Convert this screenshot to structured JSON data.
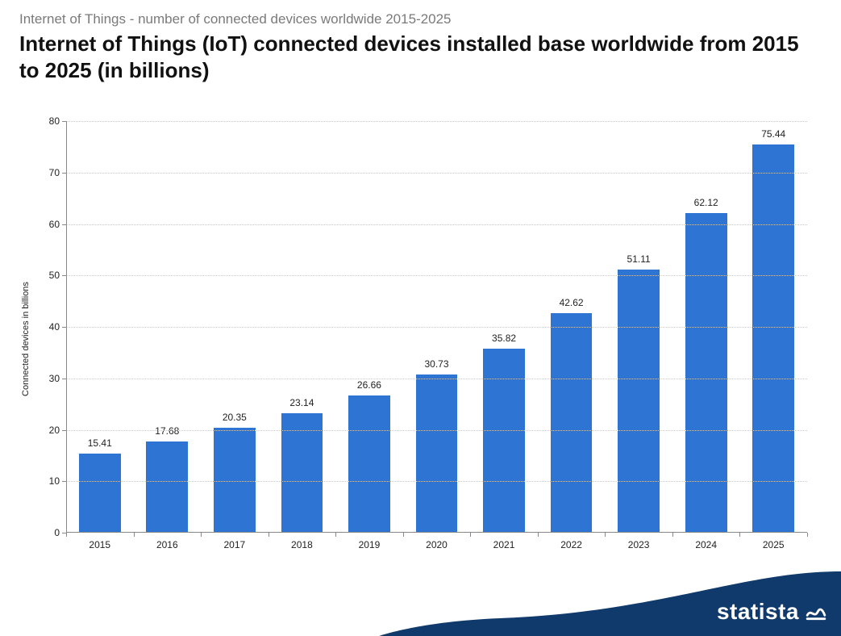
{
  "header": {
    "subtitle": "Internet of Things - number of connected devices worldwide 2015-2025",
    "title": "Internet of Things (IoT) connected devices installed base worldwide from 2015 to 2025 (in billions)"
  },
  "chart": {
    "type": "bar",
    "ylabel": "Connected devices in billions",
    "label_fontsize": 11,
    "tick_fontsize": 12,
    "value_label_fontsize": 12,
    "ylim": [
      0,
      80
    ],
    "ytick_step": 10,
    "yticks": [
      0,
      10,
      20,
      30,
      40,
      50,
      60,
      70,
      80
    ],
    "categories": [
      "2015",
      "2016",
      "2017",
      "2018",
      "2019",
      "2020",
      "2021",
      "2022",
      "2023",
      "2024",
      "2025"
    ],
    "values": [
      15.41,
      17.68,
      20.35,
      23.14,
      26.66,
      30.73,
      35.82,
      42.62,
      51.11,
      62.12,
      75.44
    ],
    "bar_color": "#2e74d2",
    "background_color": "#ffffff",
    "grid_color": "#c9c9c9",
    "grid_style": "dotted",
    "axis_color": "#888888",
    "text_color": "#222222",
    "bar_width_ratio": 0.62
  },
  "footer": {
    "brand": "statista",
    "curve_color": "#0f3a6b",
    "brand_text_color": "#ffffff"
  }
}
